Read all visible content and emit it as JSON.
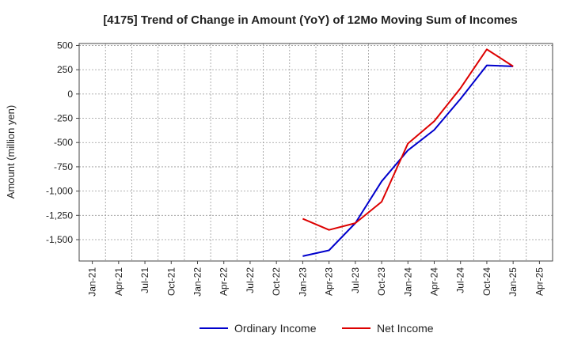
{
  "chart_data": {
    "type": "line",
    "title": "[4175]  Trend of Change in Amount (YoY) of 12Mo Moving Sum of Incomes",
    "xlabel": "",
    "ylabel": "Amount (million yen)",
    "x": [
      "Jan-21",
      "Apr-21",
      "Jul-21",
      "Oct-21",
      "Jan-22",
      "Apr-22",
      "Jul-22",
      "Oct-22",
      "Jan-23",
      "Apr-23",
      "Jul-23",
      "Oct-23",
      "Jan-24",
      "Apr-24",
      "Jul-24",
      "Oct-24",
      "Jan-25",
      "Apr-25"
    ],
    "ylim": [
      -1720,
      520
    ],
    "yticks": [
      500,
      250,
      0,
      -250,
      -500,
      -750,
      -1000,
      -1250,
      -1500
    ],
    "ytick_labels": [
      "500",
      "250",
      "0",
      "-250",
      "-500",
      "-750",
      "-1,000",
      "-1,250",
      "-1,500"
    ],
    "grid": true,
    "legend_position": "bottom",
    "series": [
      {
        "name": "Ordinary Income",
        "color": "#0000cc",
        "values": [
          null,
          null,
          null,
          null,
          null,
          null,
          null,
          null,
          -1670,
          -1610,
          -1330,
          -900,
          -580,
          -370,
          -50,
          295,
          285,
          null
        ]
      },
      {
        "name": "Net Income",
        "color": "#dd0000",
        "values": [
          null,
          null,
          null,
          null,
          null,
          null,
          null,
          null,
          -1285,
          -1400,
          -1330,
          -1110,
          -510,
          -280,
          60,
          460,
          285,
          null
        ]
      }
    ]
  }
}
